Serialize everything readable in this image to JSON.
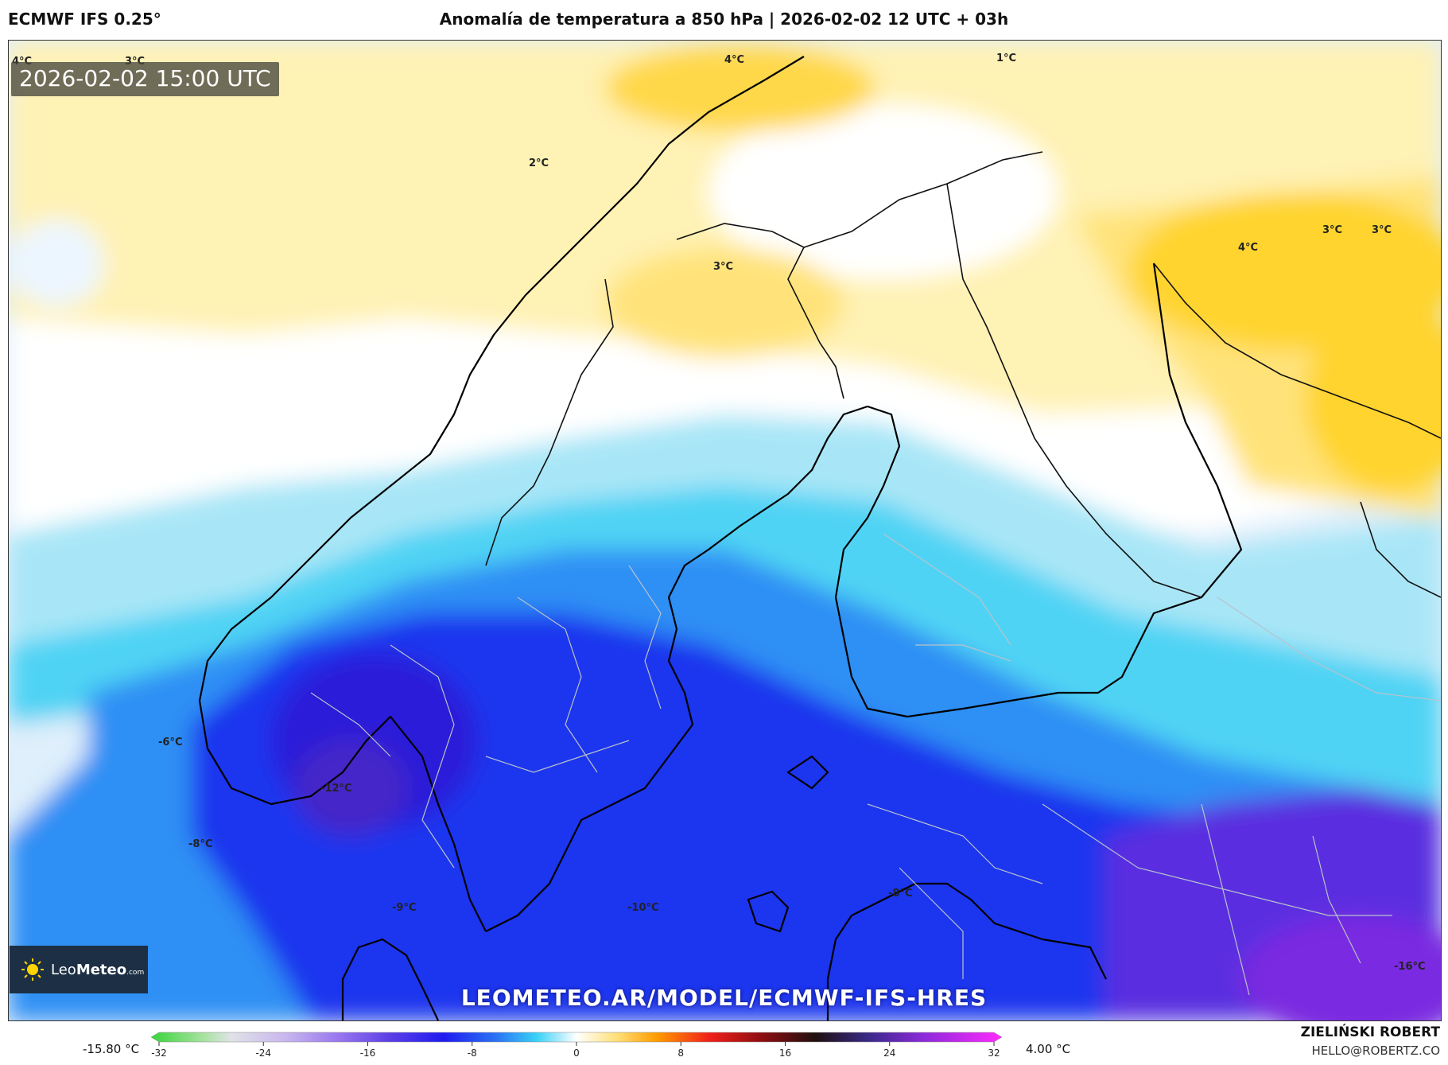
{
  "header": {
    "model": "ECMWF IFS 0.25°",
    "title": "Anomalía de temperatura a 850 hPa | 2026-02-02 12 UTC + 03h"
  },
  "valid_time": "2026-02-02 15:00 UTC",
  "logo": {
    "brand_light": "Leo",
    "brand_bold": "Meteo",
    "suffix": ".com",
    "icon": "sun-icon"
  },
  "watermark": "LEOMETEO.AR/MODEL/ECMWF-IFS-HRES",
  "footer": {
    "min_value": "-15.80 °C",
    "max_value": "4.00 °C",
    "author": "ZIELIŃSKI ROBERT",
    "email": "HELLO@ROBERTZ.CO"
  },
  "colorbar": {
    "range": [
      -32,
      32
    ],
    "ticks": [
      "-32",
      "-24",
      "-16",
      "-8",
      "0",
      "8",
      "16",
      "24",
      "32"
    ],
    "stops": [
      {
        "v": -32,
        "c": "#39d43a"
      },
      {
        "v": -28,
        "c": "#a9e3a1"
      },
      {
        "v": -26,
        "c": "#dfe3e6"
      },
      {
        "v": -22,
        "c": "#c9b8ee"
      },
      {
        "v": -18,
        "c": "#9a78f0"
      },
      {
        "v": -14,
        "c": "#5a3ee6"
      },
      {
        "v": -10,
        "c": "#1f1cf0"
      },
      {
        "v": -6,
        "c": "#2a74f4"
      },
      {
        "v": -3,
        "c": "#38d2f6"
      },
      {
        "v": 0,
        "c": "#ffffff"
      },
      {
        "v": 3,
        "c": "#ffe07a"
      },
      {
        "v": 6,
        "c": "#ff9d00"
      },
      {
        "v": 10,
        "c": "#f0201a"
      },
      {
        "v": 14,
        "c": "#8c0d10"
      },
      {
        "v": 18,
        "c": "#201010"
      },
      {
        "v": 22,
        "c": "#3a2a8a"
      },
      {
        "v": 26,
        "c": "#8a2ad8"
      },
      {
        "v": 32,
        "c": "#ff2aff"
      }
    ]
  },
  "map_labels": [
    {
      "text": "4°C"
    },
    {
      "text": "3°C"
    },
    {
      "text": "4°C"
    },
    {
      "text": "2°C"
    },
    {
      "text": "1°C"
    },
    {
      "text": "3°C"
    },
    {
      "text": "4°C"
    },
    {
      "text": "3°C"
    },
    {
      "text": "3°C"
    },
    {
      "text": "-6°C"
    },
    {
      "text": "-12°C"
    },
    {
      "text": "-8°C"
    },
    {
      "text": "-9°C"
    },
    {
      "text": "-10°C"
    },
    {
      "text": "-8°C"
    },
    {
      "text": "-16°C"
    }
  ]
}
